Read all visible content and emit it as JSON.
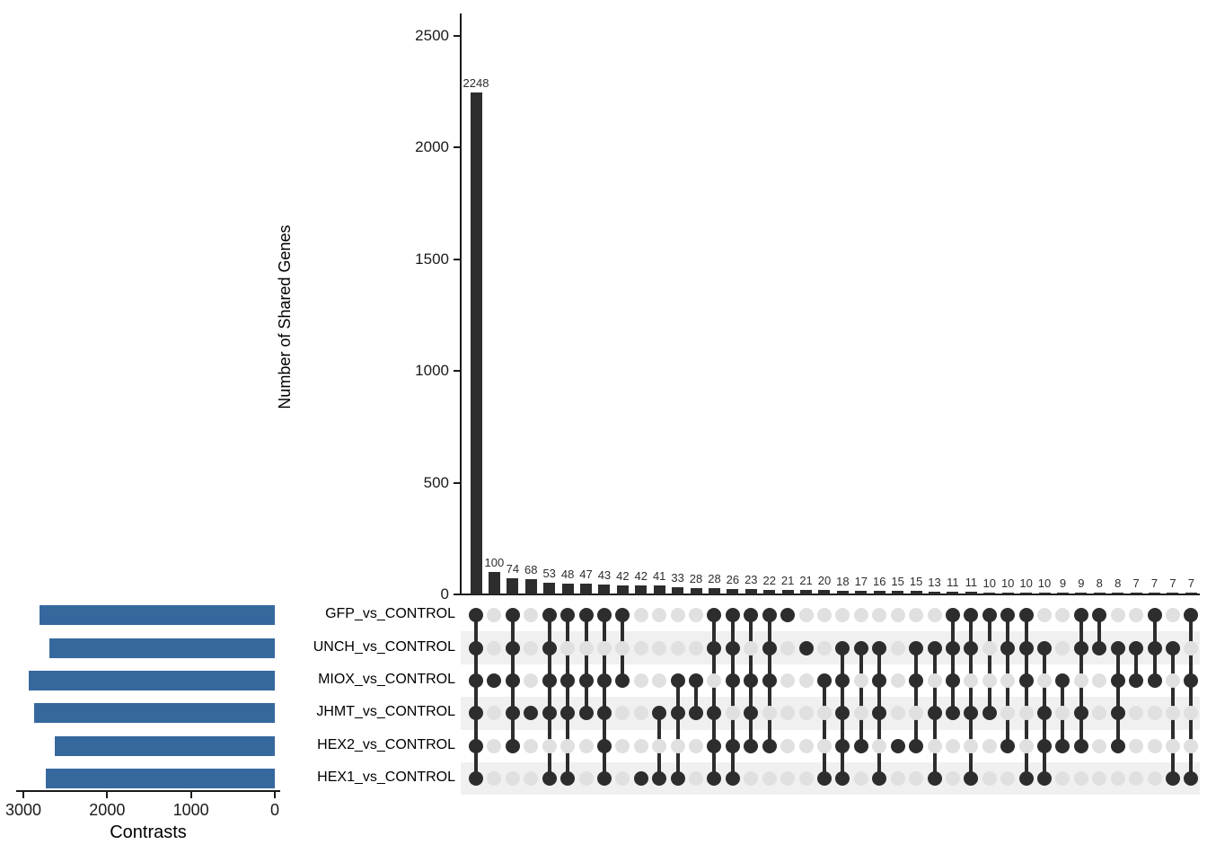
{
  "chart_data": {
    "type": "upset",
    "y_axis_label": "Number of Shared Genes",
    "set_axis_label": "Contrasts",
    "y_ticks": [
      0,
      500,
      1000,
      1500,
      2000,
      2500
    ],
    "y_max": 2500,
    "set_ticks": [
      3000,
      2000,
      1000,
      0
    ],
    "set_max": 3000,
    "set_names": [
      "GFP_vs_CONTROL",
      "UNCH_vs_CONTROL",
      "MIOX_vs_CONTROL",
      "JHMT_vs_CONTROL",
      "HEX2_vs_CONTROL",
      "HEX1_vs_CONTROL"
    ],
    "set_sizes": [
      2810,
      2690,
      2935,
      2875,
      2630,
      2730
    ],
    "intersections": [
      {
        "size": 2248,
        "members": [
          1,
          1,
          1,
          1,
          1,
          1
        ]
      },
      {
        "size": 100,
        "members": [
          0,
          0,
          1,
          0,
          0,
          0
        ]
      },
      {
        "size": 74,
        "members": [
          1,
          1,
          1,
          1,
          1,
          0
        ]
      },
      {
        "size": 68,
        "members": [
          0,
          0,
          0,
          1,
          0,
          0
        ]
      },
      {
        "size": 53,
        "members": [
          1,
          1,
          1,
          1,
          0,
          1
        ]
      },
      {
        "size": 48,
        "members": [
          1,
          0,
          1,
          1,
          0,
          1
        ]
      },
      {
        "size": 47,
        "members": [
          1,
          0,
          1,
          1,
          0,
          0
        ]
      },
      {
        "size": 43,
        "members": [
          1,
          0,
          1,
          1,
          1,
          1
        ]
      },
      {
        "size": 42,
        "members": [
          1,
          0,
          1,
          0,
          0,
          0
        ]
      },
      {
        "size": 42,
        "members": [
          0,
          0,
          0,
          0,
          0,
          1
        ]
      },
      {
        "size": 41,
        "members": [
          0,
          0,
          0,
          1,
          0,
          1
        ]
      },
      {
        "size": 33,
        "members": [
          0,
          0,
          1,
          1,
          0,
          1
        ]
      },
      {
        "size": 28,
        "members": [
          0,
          0,
          1,
          1,
          0,
          0
        ]
      },
      {
        "size": 28,
        "members": [
          1,
          1,
          0,
          1,
          1,
          1
        ]
      },
      {
        "size": 26,
        "members": [
          1,
          1,
          1,
          0,
          1,
          1
        ]
      },
      {
        "size": 23,
        "members": [
          1,
          0,
          1,
          1,
          1,
          0
        ]
      },
      {
        "size": 22,
        "members": [
          1,
          1,
          1,
          0,
          1,
          0
        ]
      },
      {
        "size": 21,
        "members": [
          1,
          0,
          0,
          0,
          0,
          0
        ]
      },
      {
        "size": 21,
        "members": [
          0,
          1,
          0,
          0,
          0,
          0
        ]
      },
      {
        "size": 20,
        "members": [
          0,
          0,
          1,
          0,
          0,
          1
        ]
      },
      {
        "size": 18,
        "members": [
          0,
          1,
          1,
          1,
          1,
          1
        ]
      },
      {
        "size": 17,
        "members": [
          0,
          1,
          0,
          0,
          1,
          0
        ]
      },
      {
        "size": 16,
        "members": [
          0,
          1,
          1,
          1,
          0,
          1
        ]
      },
      {
        "size": 15,
        "members": [
          0,
          0,
          0,
          0,
          1,
          0
        ]
      },
      {
        "size": 15,
        "members": [
          0,
          1,
          1,
          0,
          1,
          0
        ]
      },
      {
        "size": 13,
        "members": [
          0,
          1,
          0,
          1,
          0,
          1
        ]
      },
      {
        "size": 11,
        "members": [
          1,
          1,
          1,
          1,
          0,
          0
        ]
      },
      {
        "size": 11,
        "members": [
          1,
          1,
          0,
          1,
          0,
          1
        ]
      },
      {
        "size": 10,
        "members": [
          1,
          0,
          0,
          1,
          0,
          0
        ]
      },
      {
        "size": 10,
        "members": [
          1,
          1,
          0,
          0,
          1,
          0
        ]
      },
      {
        "size": 10,
        "members": [
          1,
          1,
          1,
          0,
          0,
          1
        ]
      },
      {
        "size": 10,
        "members": [
          0,
          1,
          0,
          1,
          1,
          1
        ]
      },
      {
        "size": 9,
        "members": [
          0,
          0,
          1,
          0,
          1,
          0
        ]
      },
      {
        "size": 9,
        "members": [
          1,
          1,
          0,
          1,
          1,
          0
        ]
      },
      {
        "size": 8,
        "members": [
          1,
          1,
          0,
          0,
          0,
          0
        ]
      },
      {
        "size": 8,
        "members": [
          0,
          1,
          1,
          1,
          1,
          0
        ]
      },
      {
        "size": 7,
        "members": [
          0,
          1,
          1,
          0,
          0,
          0
        ]
      },
      {
        "size": 7,
        "members": [
          1,
          1,
          1,
          0,
          0,
          0
        ]
      },
      {
        "size": 7,
        "members": [
          0,
          1,
          0,
          0,
          0,
          1
        ]
      },
      {
        "size": 7,
        "members": [
          1,
          0,
          1,
          0,
          0,
          1
        ]
      }
    ],
    "colors": {
      "intersection_bar": "#2d2d2d",
      "dot_active": "#2d2d2d",
      "dot_inactive": "#e0e0e0",
      "stripe": "#f0f0f0",
      "set_bar": "#36689e",
      "axis": "#1a1a1a"
    }
  }
}
